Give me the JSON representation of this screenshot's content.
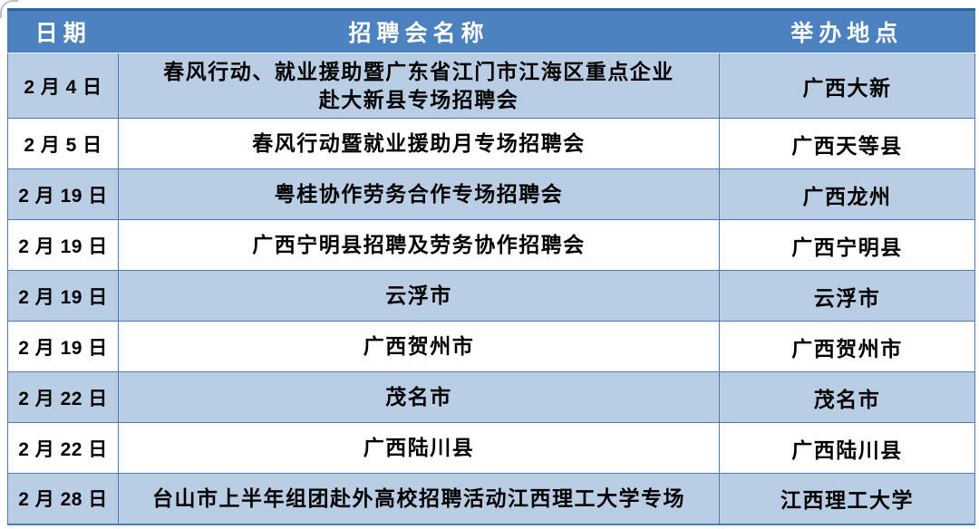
{
  "colors": {
    "header_bg": "#4A81BE",
    "header_text": "#FFFFFF",
    "band_row_bg": "#B9CDE5",
    "plain_row_bg": "#FFFFFF",
    "border": "#4E7BB4",
    "outer_top_border": "#31639C",
    "header_separator": "#E9EFF6",
    "body_text": "#000000"
  },
  "table": {
    "columns": [
      {
        "label": "日期"
      },
      {
        "label": "招聘会名称"
      },
      {
        "label": "举办地点"
      }
    ],
    "rows": [
      {
        "date": "2 月 4 日",
        "name": "春风行动、就业援助暨广东省江门市江海区重点企业\n赴大新县专场招聘会",
        "location": "广西大新"
      },
      {
        "date": "2 月 5 日",
        "name": "春风行动暨就业援助月专场招聘会",
        "location": "广西天等县"
      },
      {
        "date": "2 月 19 日",
        "name": "粤桂协作劳务合作专场招聘会",
        "location": "广西龙州"
      },
      {
        "date": "2 月 19 日",
        "name": "广西宁明县招聘及劳务协作招聘会",
        "location": "广西宁明县"
      },
      {
        "date": "2 月 19 日",
        "name": "云浮市",
        "location": "云浮市"
      },
      {
        "date": "2 月 19 日",
        "name": "广西贺州市",
        "location": "广西贺州市"
      },
      {
        "date": "2 月 22 日",
        "name": "茂名市",
        "location": "茂名市"
      },
      {
        "date": "2 月 22 日",
        "name": "广西陆川县",
        "location": "广西陆川县"
      },
      {
        "date": "2 月 28 日",
        "name": "台山市上半年组团赴外高校招聘活动江西理工大学专场",
        "location": "江西理工大学"
      }
    ]
  },
  "chart_data": {
    "type": "table",
    "title": "",
    "columns": [
      "日期",
      "招聘会名称",
      "举办地点"
    ],
    "rows": [
      [
        "2 月 4 日",
        "春风行动、就业援助暨广东省江门市江海区重点企业赴大新县专场招聘会",
        "广西大新"
      ],
      [
        "2 月 5 日",
        "春风行动暨就业援助月专场招聘会",
        "广西天等县"
      ],
      [
        "2 月 19 日",
        "粤桂协作劳务合作专场招聘会",
        "广西龙州"
      ],
      [
        "2 月 19 日",
        "广西宁明县招聘及劳务协作招聘会",
        "广西宁明县"
      ],
      [
        "2 月 19 日",
        "云浮市",
        "云浮市"
      ],
      [
        "2 月 19 日",
        "广西贺州市",
        "广西贺州市"
      ],
      [
        "2 月 22 日",
        "茂名市",
        "茂名市"
      ],
      [
        "2 月 22 日",
        "广西陆川县",
        "广西陆川县"
      ],
      [
        "2 月 28 日",
        "台山市上半年组团赴外高校招聘活动江西理工大学专场",
        "江西理工大学"
      ]
    ]
  }
}
